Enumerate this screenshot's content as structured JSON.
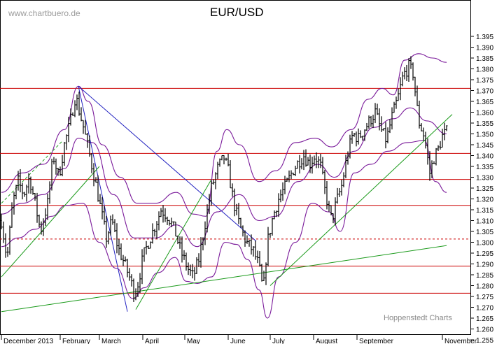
{
  "watermark": "www.chartbuero.de",
  "credit": "Hoppenstedt Charts",
  "chart_data": {
    "type": "candlestick",
    "title": "EUR/USD",
    "ylim": [
      1.255,
      1.395
    ],
    "y_ticks": [
      1.255,
      1.26,
      1.265,
      1.27,
      1.275,
      1.28,
      1.285,
      1.29,
      1.295,
      1.3,
      1.305,
      1.31,
      1.315,
      1.32,
      1.325,
      1.33,
      1.335,
      1.34,
      1.345,
      1.35,
      1.355,
      1.36,
      1.365,
      1.37,
      1.375,
      1.38,
      1.385,
      1.39,
      1.395
    ],
    "x_labels": [
      "December 2013",
      "February",
      "March",
      "April",
      "May",
      "June",
      "July",
      "August",
      "September",
      "November"
    ],
    "x_label_positions_days": [
      0,
      42,
      70,
      101,
      131,
      162,
      192,
      223,
      254,
      315
    ],
    "x_range_days": [
      0,
      330
    ],
    "colors": {
      "price": "#000000",
      "horizontal": "#cc0000",
      "bollinger": "#7a1a9a",
      "trend_blue": "#2020c0",
      "trend_green": "#1a9a1a"
    },
    "horizontal_lines": [
      1.371,
      1.341,
      1.329,
      1.317,
      1.289,
      1.2765
    ],
    "dashed_lines": [
      1.3015
    ],
    "price_path": [
      [
        0,
        1.31
      ],
      [
        4,
        1.292
      ],
      [
        8,
        1.318
      ],
      [
        12,
        1.328
      ],
      [
        16,
        1.322
      ],
      [
        20,
        1.33
      ],
      [
        24,
        1.318
      ],
      [
        28,
        1.305
      ],
      [
        33,
        1.318
      ],
      [
        37,
        1.34
      ],
      [
        41,
        1.33
      ],
      [
        45,
        1.345
      ],
      [
        49,
        1.355
      ],
      [
        53,
        1.368
      ],
      [
        55,
        1.362
      ],
      [
        59,
        1.352
      ],
      [
        63,
        1.34
      ],
      [
        67,
        1.328
      ],
      [
        71,
        1.315
      ],
      [
        75,
        1.302
      ],
      [
        79,
        1.31
      ],
      [
        83,
        1.298
      ],
      [
        88,
        1.29
      ],
      [
        92,
        1.283
      ],
      [
        95,
        1.276
      ],
      [
        98,
        1.282
      ],
      [
        101,
        1.293
      ],
      [
        105,
        1.3
      ],
      [
        110,
        1.308
      ],
      [
        114,
        1.315
      ],
      [
        119,
        1.312
      ],
      [
        124,
        1.305
      ],
      [
        128,
        1.296
      ],
      [
        133,
        1.288
      ],
      [
        137,
        1.284
      ],
      [
        141,
        1.292
      ],
      [
        145,
        1.307
      ],
      [
        150,
        1.325
      ],
      [
        155,
        1.335
      ],
      [
        159,
        1.339
      ],
      [
        162,
        1.333
      ],
      [
        166,
        1.318
      ],
      [
        170,
        1.308
      ],
      [
        175,
        1.3
      ],
      [
        180,
        1.296
      ],
      [
        184,
        1.289
      ],
      [
        187,
        1.277
      ],
      [
        190,
        1.3
      ],
      [
        194,
        1.312
      ],
      [
        198,
        1.32
      ],
      [
        203,
        1.326
      ],
      [
        208,
        1.333
      ],
      [
        212,
        1.337
      ],
      [
        216,
        1.34
      ],
      [
        220,
        1.336
      ],
      [
        224,
        1.34
      ],
      [
        228,
        1.335
      ],
      [
        231,
        1.324
      ],
      [
        234,
        1.315
      ],
      [
        236,
        1.31
      ],
      [
        239,
        1.318
      ],
      [
        243,
        1.326
      ],
      [
        247,
        1.34
      ],
      [
        251,
        1.35
      ],
      [
        255,
        1.348
      ],
      [
        259,
        1.352
      ],
      [
        263,
        1.356
      ],
      [
        267,
        1.36
      ],
      [
        271,
        1.352
      ],
      [
        275,
        1.347
      ],
      [
        279,
        1.358
      ],
      [
        283,
        1.366
      ],
      [
        287,
        1.377
      ],
      [
        291,
        1.381
      ],
      [
        294,
        1.378
      ],
      [
        298,
        1.356
      ],
      [
        302,
        1.349
      ],
      [
        306,
        1.332
      ],
      [
        309,
        1.339
      ],
      [
        312,
        1.343
      ],
      [
        315,
        1.349
      ],
      [
        318,
        1.351
      ]
    ],
    "bollinger_upper": [
      [
        0,
        1.323
      ],
      [
        15,
        1.332
      ],
      [
        30,
        1.336
      ],
      [
        45,
        1.352
      ],
      [
        55,
        1.372
      ],
      [
        62,
        1.365
      ],
      [
        72,
        1.345
      ],
      [
        85,
        1.33
      ],
      [
        97,
        1.318
      ],
      [
        110,
        1.318
      ],
      [
        125,
        1.323
      ],
      [
        137,
        1.313
      ],
      [
        146,
        1.312
      ],
      [
        154,
        1.342
      ],
      [
        161,
        1.352
      ],
      [
        170,
        1.345
      ],
      [
        184,
        1.328
      ],
      [
        196,
        1.333
      ],
      [
        210,
        1.346
      ],
      [
        224,
        1.348
      ],
      [
        236,
        1.344
      ],
      [
        250,
        1.352
      ],
      [
        262,
        1.366
      ],
      [
        272,
        1.371
      ],
      [
        280,
        1.368
      ],
      [
        288,
        1.384
      ],
      [
        298,
        1.387
      ],
      [
        308,
        1.385
      ],
      [
        318,
        1.383
      ]
    ],
    "bollinger_middle": [
      [
        0,
        1.313
      ],
      [
        15,
        1.318
      ],
      [
        30,
        1.322
      ],
      [
        45,
        1.334
      ],
      [
        55,
        1.348
      ],
      [
        65,
        1.346
      ],
      [
        80,
        1.322
      ],
      [
        95,
        1.302
      ],
      [
        110,
        1.302
      ],
      [
        125,
        1.308
      ],
      [
        140,
        1.298
      ],
      [
        154,
        1.314
      ],
      [
        170,
        1.322
      ],
      [
        184,
        1.31
      ],
      [
        196,
        1.312
      ],
      [
        212,
        1.328
      ],
      [
        226,
        1.336
      ],
      [
        238,
        1.33
      ],
      [
        252,
        1.342
      ],
      [
        266,
        1.353
      ],
      [
        280,
        1.357
      ],
      [
        292,
        1.362
      ],
      [
        304,
        1.356
      ],
      [
        318,
        1.35
      ]
    ],
    "bollinger_lower": [
      [
        0,
        1.298
      ],
      [
        12,
        1.302
      ],
      [
        24,
        1.306
      ],
      [
        36,
        1.312
      ],
      [
        46,
        1.317
      ],
      [
        58,
        1.318
      ],
      [
        70,
        1.3
      ],
      [
        82,
        1.288
      ],
      [
        94,
        1.274
      ],
      [
        102,
        1.279
      ],
      [
        112,
        1.286
      ],
      [
        124,
        1.293
      ],
      [
        132,
        1.282
      ],
      [
        140,
        1.281
      ],
      [
        150,
        1.284
      ],
      [
        160,
        1.3
      ],
      [
        168,
        1.299
      ],
      [
        176,
        1.292
      ],
      [
        184,
        1.278
      ],
      [
        190,
        1.265
      ],
      [
        198,
        1.284
      ],
      [
        210,
        1.3
      ],
      [
        222,
        1.318
      ],
      [
        234,
        1.314
      ],
      [
        242,
        1.305
      ],
      [
        252,
        1.332
      ],
      [
        264,
        1.336
      ],
      [
        276,
        1.342
      ],
      [
        290,
        1.346
      ],
      [
        302,
        1.347
      ],
      [
        310,
        1.328
      ],
      [
        318,
        1.323
      ]
    ],
    "trendlines": [
      {
        "color": "trend_blue",
        "dashed": false,
        "points": [
          [
            55,
            1.372
          ],
          [
            90,
            1.268
          ]
        ]
      },
      {
        "color": "trend_blue",
        "dashed": false,
        "points": [
          [
            55,
            1.372
          ],
          [
            182,
            1.3005
          ]
        ]
      },
      {
        "color": "trend_green",
        "dashed": true,
        "points": [
          [
            0,
            1.318
          ],
          [
            44,
            1.347
          ]
        ]
      },
      {
        "color": "trend_green",
        "dashed": false,
        "points": [
          [
            0,
            1.284
          ],
          [
            70,
            1.335
          ]
        ]
      },
      {
        "color": "trend_green",
        "dashed": false,
        "points": [
          [
            0,
            1.268
          ],
          [
            318,
            1.2985
          ]
        ]
      },
      {
        "color": "trend_green",
        "dashed": false,
        "points": [
          [
            96,
            1.269
          ],
          [
            150,
            1.329
          ]
        ]
      },
      {
        "color": "trend_green",
        "dashed": false,
        "points": [
          [
            192,
            1.28
          ],
          [
            322,
            1.359
          ]
        ]
      }
    ]
  }
}
